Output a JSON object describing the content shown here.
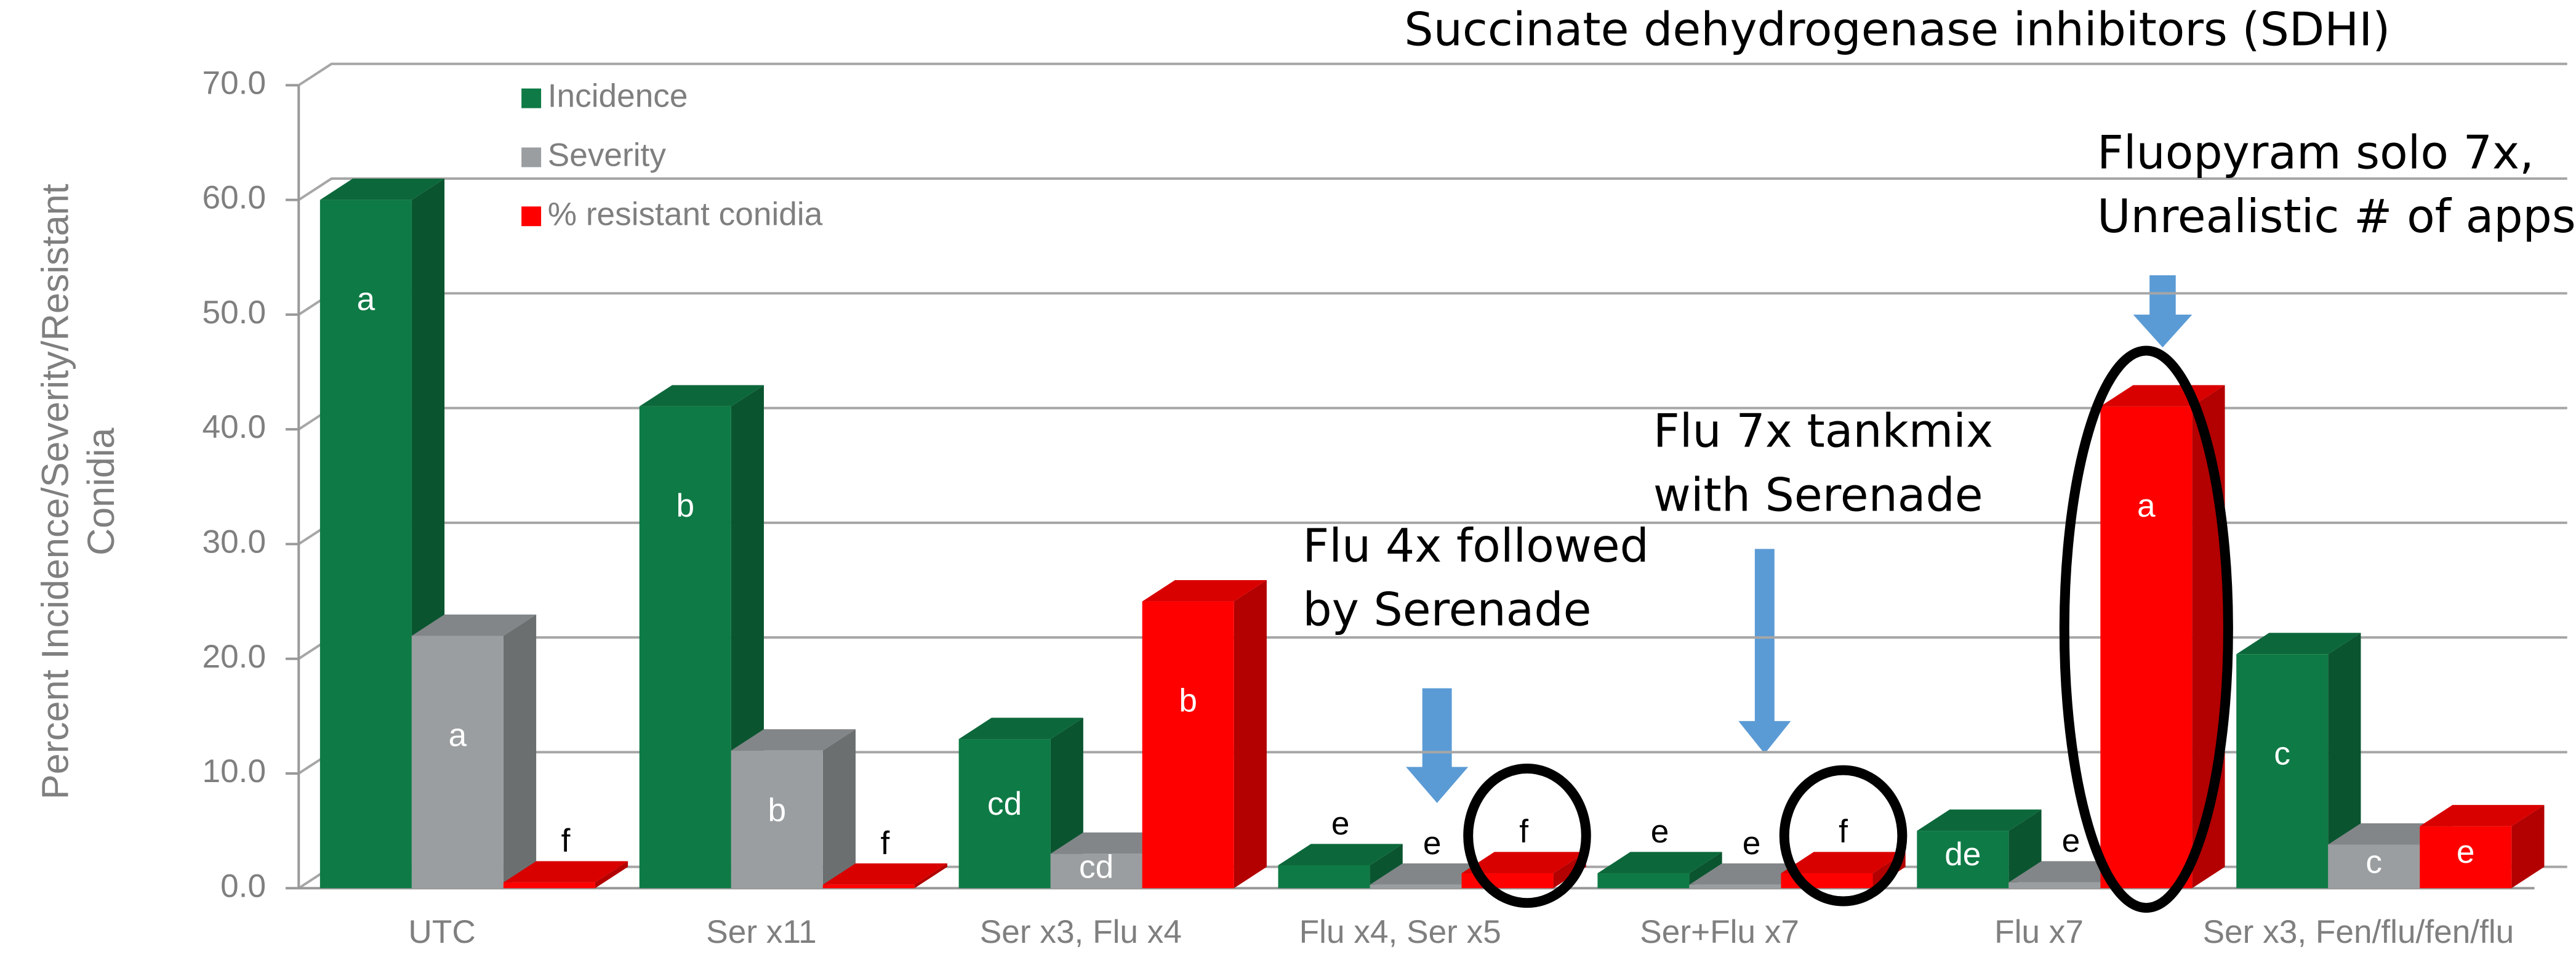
{
  "chart_data": {
    "type": "bar3d",
    "title": "Succinate dehydrogenase inhibitors (SDHI)",
    "y_label": [
      "Percent Incidence/Severity/Resistant",
      "Conidia"
    ],
    "categories": [
      "UTC",
      "Ser x11",
      "Ser x3, Flu x4",
      "Flu x4, Ser x5",
      "Ser+Flu x7",
      "Flu x7",
      "Ser x3, Fen/flu/fen/flu"
    ],
    "series": [
      {
        "name": "Incidence",
        "color": "#0e7a45",
        "values": [
          60,
          42,
          13,
          2,
          1.3,
          5,
          20.4
        ],
        "letters": [
          "a",
          "b",
          "cd",
          "e",
          "e",
          "de",
          "c"
        ]
      },
      {
        "name": "Severity",
        "color": "#9a9ea0",
        "values": [
          22,
          12,
          3,
          0.3,
          0.3,
          0.5,
          3.8
        ],
        "letters": [
          "a",
          "b",
          "cd",
          "e",
          "e",
          "e",
          "c"
        ]
      },
      {
        "name": "% resistant conidia",
        "color": "#ff0000",
        "values": [
          0.5,
          0.3,
          25,
          1.3,
          1.3,
          42,
          5.4
        ],
        "letters": [
          "f",
          "f",
          "b",
          "f",
          "f",
          "a",
          "e"
        ]
      }
    ],
    "ylim": [
      0,
      70
    ],
    "yticks": [
      {
        "value": 0,
        "label": "0.0"
      },
      {
        "value": 10,
        "label": "10.0"
      },
      {
        "value": 20,
        "label": "20.0"
      },
      {
        "value": 30,
        "label": "30.0"
      },
      {
        "value": 40,
        "label": "40.0"
      },
      {
        "value": 50,
        "label": "50.0"
      },
      {
        "value": 60,
        "label": "60.0"
      },
      {
        "value": 70,
        "label": "70.0"
      }
    ],
    "grid": true,
    "annotations": [
      [
        "Fluopyram solo 7x,",
        "Unrealistic # of apps"
      ],
      [
        "Flu 7x tankmix",
        "with Serenade"
      ],
      [
        "Flu 4x followed",
        "by Serenade"
      ]
    ]
  }
}
